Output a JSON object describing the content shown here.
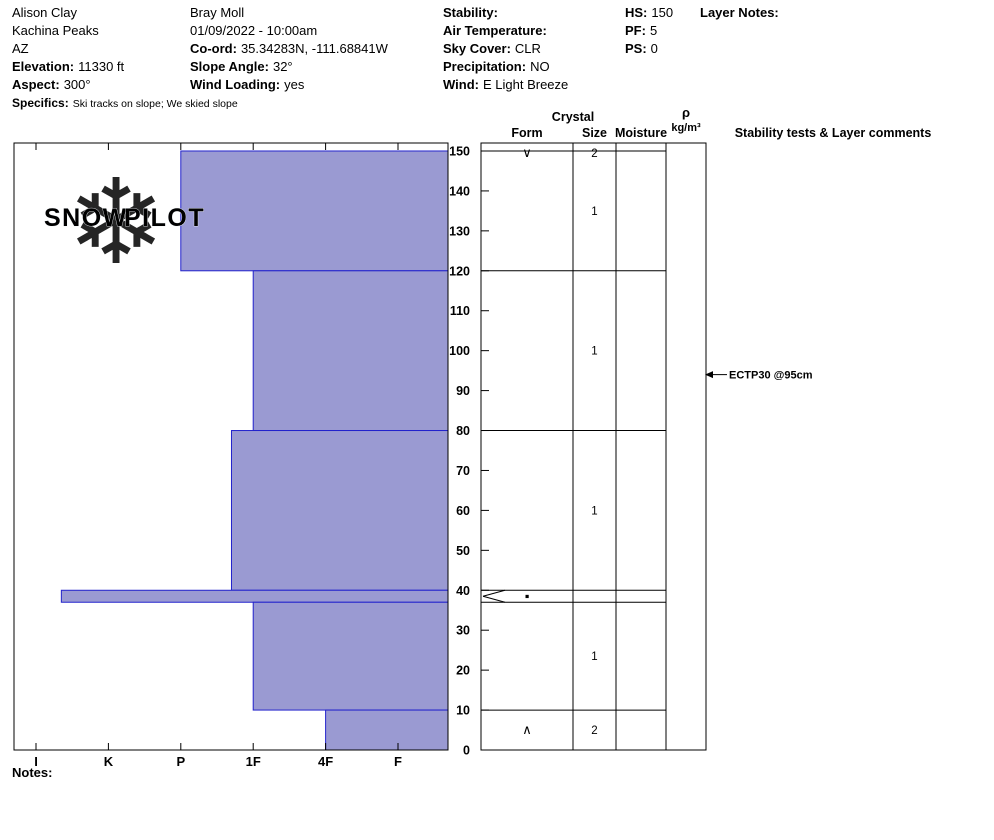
{
  "header": {
    "observer1": {
      "name": "Alison Clay",
      "area": "Kachina Peaks",
      "state": "AZ",
      "elevation_label": "Elevation:",
      "elevation_value": "11330 ft",
      "aspect_label": "Aspect:",
      "aspect_value": "300°",
      "specifics_label": "Specifics:",
      "specifics_value": "Ski tracks on slope; We skied slope"
    },
    "observer2": {
      "name": "Bray Moll",
      "datetime": "01/09/2022 - 10:00am",
      "coord_label": "Co-ord:",
      "coord_value": "35.34283N, -111.68841W",
      "slope_angle_label": "Slope Angle:",
      "slope_angle_value": "32°",
      "wind_loading_label": "Wind Loading:",
      "wind_loading_value": "yes"
    },
    "conditions": {
      "stability_label": "Stability:",
      "stability_value": "",
      "air_temp_label": "Air Temperature:",
      "air_temp_value": "",
      "sky_cover_label": "Sky Cover:",
      "sky_cover_value": "CLR",
      "precipitation_label": "Precipitation:",
      "precipitation_value": "NO",
      "wind_label": "Wind:",
      "wind_value": "E Light Breeze"
    },
    "pit": {
      "hs_label": "HS:",
      "hs_value": "150",
      "pf_label": "PF:",
      "pf_value": "5",
      "ps_label": "PS:",
      "ps_value": "0"
    },
    "layer_notes_label": "Layer Notes:"
  },
  "watermark": {
    "word1": "SNOW",
    "word2": "PILOT",
    "snowflake": "❄"
  },
  "notes_label": "Notes:",
  "chart_data": {
    "type": "bar",
    "orientation": "horizontal-snow-hardness-profile",
    "depth_axis": {
      "unit": "cm",
      "min": 0,
      "max": 150,
      "tick_step": 10
    },
    "hardness_axis": {
      "categories": [
        "I",
        "K",
        "P",
        "1F",
        "4F",
        "F"
      ]
    },
    "layers": [
      {
        "top_cm": 150,
        "bottom_cm": 120,
        "hardness": "P",
        "hardness_index": 2.0
      },
      {
        "top_cm": 120,
        "bottom_cm": 80,
        "hardness": "1F",
        "hardness_index": 3.0
      },
      {
        "top_cm": 80,
        "bottom_cm": 40,
        "hardness": "1F+",
        "hardness_index": 2.7
      },
      {
        "top_cm": 40,
        "bottom_cm": 37,
        "hardness": "K+",
        "hardness_index": 0.35,
        "pinched": true
      },
      {
        "top_cm": 37,
        "bottom_cm": 10,
        "hardness": "1F",
        "hardness_index": 3.0
      },
      {
        "top_cm": 10,
        "bottom_cm": 0,
        "hardness": "4F",
        "hardness_index": 4.0
      }
    ],
    "grain_form_marks": [
      {
        "depth_cm": 149.5,
        "symbol": "∨"
      },
      {
        "depth_cm": 38.5,
        "symbol": "▪"
      },
      {
        "depth_cm": 5,
        "symbol": "∧"
      }
    ],
    "grain_size_marks": [
      {
        "depth_cm": 149.5,
        "value": "2"
      },
      {
        "depth_cm": 135,
        "value": "1"
      },
      {
        "depth_cm": 100,
        "value": "1"
      },
      {
        "depth_cm": 60,
        "value": "1"
      },
      {
        "depth_cm": 23.5,
        "value": "1"
      },
      {
        "depth_cm": 5,
        "value": "2"
      }
    ],
    "stability_tests": [
      {
        "depth_cm": 94,
        "text": "ECTP30 @95cm"
      }
    ],
    "grid_headers": {
      "crystal": "Crystal",
      "form": "Form",
      "size": "Size",
      "moisture": "Moisture",
      "rho": "ρ",
      "rho_unit": "kg/m³",
      "comments": "Stability tests & Layer comments"
    },
    "colors": {
      "bar_fill": "#9a9ad2",
      "bar_stroke": "#2222cc",
      "grid_line": "#000000",
      "watermark_flake": "#c9d4e4",
      "watermark_text": "#a4abb6"
    }
  }
}
